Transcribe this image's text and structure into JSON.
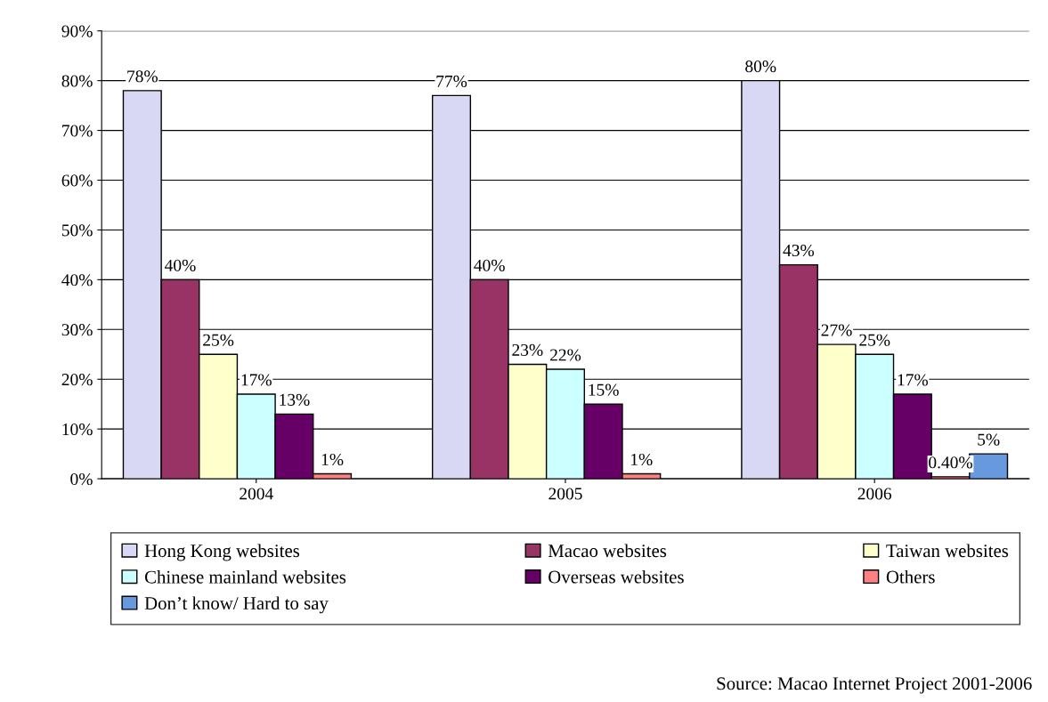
{
  "chart_data": {
    "type": "bar",
    "categories": [
      "2004",
      "2005",
      "2006"
    ],
    "series": [
      {
        "name": "Hong Kong websites",
        "color": "#d8d8f4",
        "values": [
          78,
          77,
          80
        ],
        "value_labels": [
          "78%",
          "77%",
          "80%"
        ]
      },
      {
        "name": "Macao websites",
        "color": "#993366",
        "values": [
          40,
          40,
          43
        ],
        "value_labels": [
          "40%",
          "40%",
          "43%"
        ]
      },
      {
        "name": "Taiwan websites",
        "color": "#ffffcc",
        "values": [
          25,
          23,
          27
        ],
        "value_labels": [
          "25%",
          "23%",
          "27%"
        ]
      },
      {
        "name": "Chinese mainland websites",
        "color": "#ccffff",
        "values": [
          17,
          22,
          25
        ],
        "value_labels": [
          "17%",
          "22%",
          "25%"
        ]
      },
      {
        "name": "Overseas websites",
        "color": "#660066",
        "values": [
          13,
          15,
          17
        ],
        "value_labels": [
          "13%",
          "15%",
          "17%"
        ]
      },
      {
        "name": "Others",
        "color": "#ff8080",
        "values": [
          1,
          1,
          0.4
        ],
        "value_labels": [
          "1%",
          "1%",
          "0.40%"
        ]
      },
      {
        "name": "Don’t know/ Hard to say",
        "color": "#6699dd",
        "values": [
          null,
          null,
          5
        ],
        "value_labels": [
          null,
          null,
          "5%"
        ]
      }
    ],
    "ylim": [
      0,
      90
    ],
    "yticks": [
      {
        "value": 0,
        "label": "0%"
      },
      {
        "value": 10,
        "label": "10%"
      },
      {
        "value": 20,
        "label": "20%"
      },
      {
        "value": 30,
        "label": "30%"
      },
      {
        "value": 40,
        "label": "40%"
      },
      {
        "value": 50,
        "label": "50%"
      },
      {
        "value": 60,
        "label": "60%"
      },
      {
        "value": 70,
        "label": "70%"
      },
      {
        "value": 80,
        "label": "80%"
      },
      {
        "value": 90,
        "label": "90%"
      }
    ],
    "grid": "y",
    "legend": "bottom",
    "annotations": [
      "Source: Macao Internet Project 2001-2006"
    ]
  }
}
